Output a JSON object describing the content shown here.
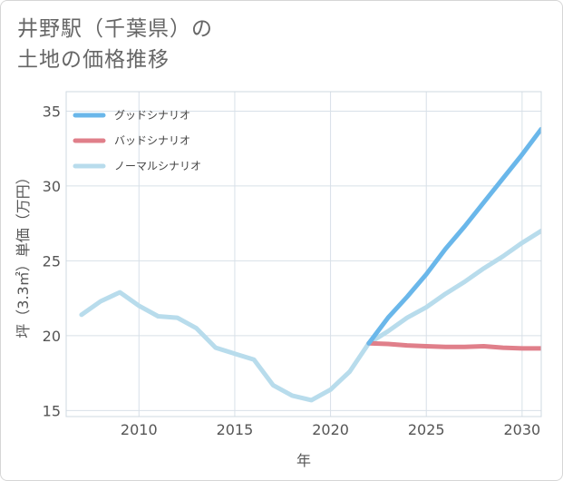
{
  "title": {
    "line1": "井野駅（千葉県）の",
    "line2": "土地の価格推移"
  },
  "chart_data": {
    "type": "line",
    "xlabel": "年",
    "ylabel": "坪（3.3㎡）単価（万円）",
    "xlim": [
      2006.2,
      2031
    ],
    "ylim": [
      14.6,
      36.3
    ],
    "x_ticks": [
      2010,
      2015,
      2020,
      2025,
      2030
    ],
    "y_ticks": [
      15,
      20,
      25,
      30,
      35
    ],
    "grid": true,
    "legend_position": "top-left",
    "series": [
      {
        "name": "グッドシナリオ",
        "color": "#6ab7ea",
        "x": [
          2022,
          2023,
          2024,
          2025,
          2026,
          2027,
          2028,
          2029,
          2030,
          2031
        ],
        "y": [
          19.5,
          21.2,
          22.6,
          24.1,
          25.8,
          27.3,
          28.9,
          30.5,
          32.1,
          33.8
        ]
      },
      {
        "name": "バッドシナリオ",
        "color": "#e07f8a",
        "x": [
          2022,
          2023,
          2024,
          2025,
          2026,
          2027,
          2028,
          2029,
          2030,
          2031
        ],
        "y": [
          19.5,
          19.45,
          19.35,
          19.3,
          19.25,
          19.25,
          19.3,
          19.2,
          19.15,
          19.15
        ]
      },
      {
        "name": "ノーマルシナリオ",
        "color": "#b8dcec",
        "x": [
          2007,
          2008,
          2009,
          2010,
          2011,
          2012,
          2013,
          2014,
          2015,
          2016,
          2017,
          2018,
          2019,
          2020,
          2021,
          2022,
          2023,
          2024,
          2025,
          2026,
          2027,
          2028,
          2029,
          2030,
          2031
        ],
        "y": [
          21.4,
          22.3,
          22.9,
          22.0,
          21.3,
          21.2,
          20.5,
          19.2,
          18.8,
          18.4,
          16.7,
          16.0,
          15.7,
          16.4,
          17.6,
          19.5,
          20.3,
          21.2,
          21.9,
          22.8,
          23.6,
          24.5,
          25.3,
          26.2,
          27.0
        ]
      }
    ]
  }
}
